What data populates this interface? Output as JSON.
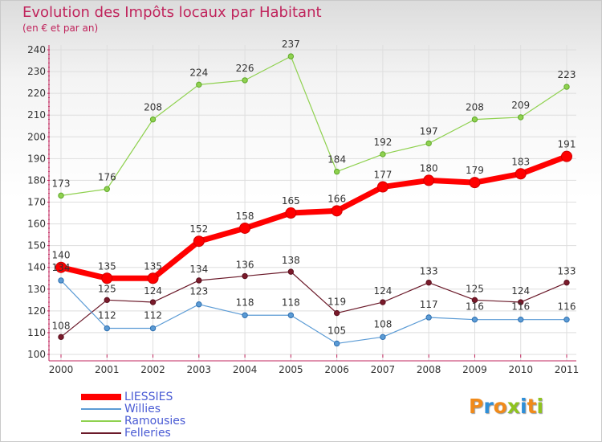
{
  "header": {
    "title": "Evolution des Impôts locaux par Habitant",
    "subtitle": "(en € et par an)"
  },
  "logo": {
    "letters": [
      "P",
      "r",
      "o",
      "x",
      "i",
      "t",
      "i"
    ],
    "colors": [
      "#f08a1a",
      "#2e8fd8",
      "#f08a1a",
      "#8fc31f",
      "#2e8fd8",
      "#f08a1a",
      "#8fc31f"
    ]
  },
  "chart_data": {
    "type": "line",
    "title": "Evolution des Impôts locaux par Habitant",
    "subtitle": "(en € et par an)",
    "xlabel": "",
    "ylabel": "",
    "ylim": [
      100,
      240
    ],
    "yticks": [
      100,
      110,
      120,
      130,
      140,
      150,
      160,
      170,
      180,
      190,
      200,
      210,
      220,
      230,
      240
    ],
    "categories": [
      "2000",
      "2001",
      "2002",
      "2003",
      "2004",
      "2005",
      "2006",
      "2007",
      "2008",
      "2009",
      "2010",
      "2011"
    ],
    "grid": true,
    "legend_position": "bottom-left",
    "series": [
      {
        "name": "LIESSIES",
        "color": "#ff0000",
        "values": [
          140,
          135,
          135,
          152,
          158,
          165,
          166,
          177,
          180,
          179,
          183,
          191
        ]
      },
      {
        "name": "Willies",
        "color": "#5b9bd5",
        "values": [
          134,
          112,
          112,
          123,
          118,
          118,
          105,
          108,
          117,
          116,
          116,
          116
        ]
      },
      {
        "name": "Ramousies",
        "color": "#8fd14f",
        "values": [
          173,
          176,
          208,
          224,
          226,
          237,
          184,
          192,
          197,
          208,
          209,
          223
        ]
      },
      {
        "name": "Felleries",
        "color": "#6b1a2a",
        "values": [
          108,
          125,
          124,
          134,
          136,
          138,
          119,
          124,
          133,
          125,
          124,
          133
        ]
      }
    ]
  }
}
